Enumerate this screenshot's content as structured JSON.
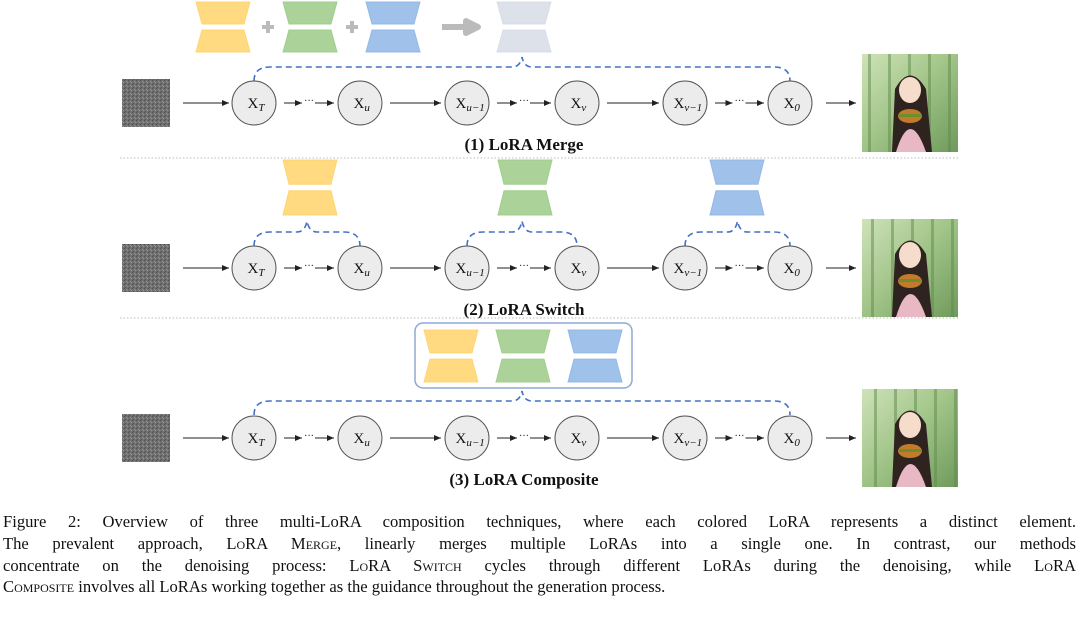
{
  "figure": {
    "nodes": [
      {
        "base": "X",
        "sub": "T"
      },
      {
        "base": "X",
        "sub": "u"
      },
      {
        "base": "X",
        "sub": "u−1"
      },
      {
        "base": "X",
        "sub": "v"
      },
      {
        "base": "X",
        "sub": "v−1"
      },
      {
        "base": "X",
        "sub": "0"
      }
    ],
    "rows": [
      {
        "label": "(1) LoRA Merge"
      },
      {
        "label": "(2) LoRA Switch"
      },
      {
        "label": "(3) LoRA Composite"
      }
    ],
    "colors": {
      "lora_yellow": "#ffd36b",
      "lora_green": "#9ccb87",
      "lora_blue": "#8fb6e6",
      "lora_merged": "#d6dce6",
      "dashed_link": "#4472c4",
      "node_fill": "#ececec"
    },
    "icons": [
      "noise-image",
      "lora-adapter",
      "plus-icon",
      "arrow-right-icon",
      "generated-image"
    ]
  },
  "caption": {
    "line1": "Figure 2: Overview of three multi-LoRA composition techniques, where each colored LoRA represents a distinct element.",
    "line2a": "The prevalent approach,",
    "merge": "LoRA Merge",
    "line2b": ", linearly merges multiple LoRAs into a single one.  In contrast, our methods",
    "line3a": "concentrate on the denoising process:",
    "switch": "LoRA Switch",
    "line3b": "cycles through different LoRAs during the denoising, while",
    "composite_a": "LoRA",
    "composite_b": "Composite",
    "line4": "involves all LoRAs working together as the guidance throughout the generation process."
  }
}
